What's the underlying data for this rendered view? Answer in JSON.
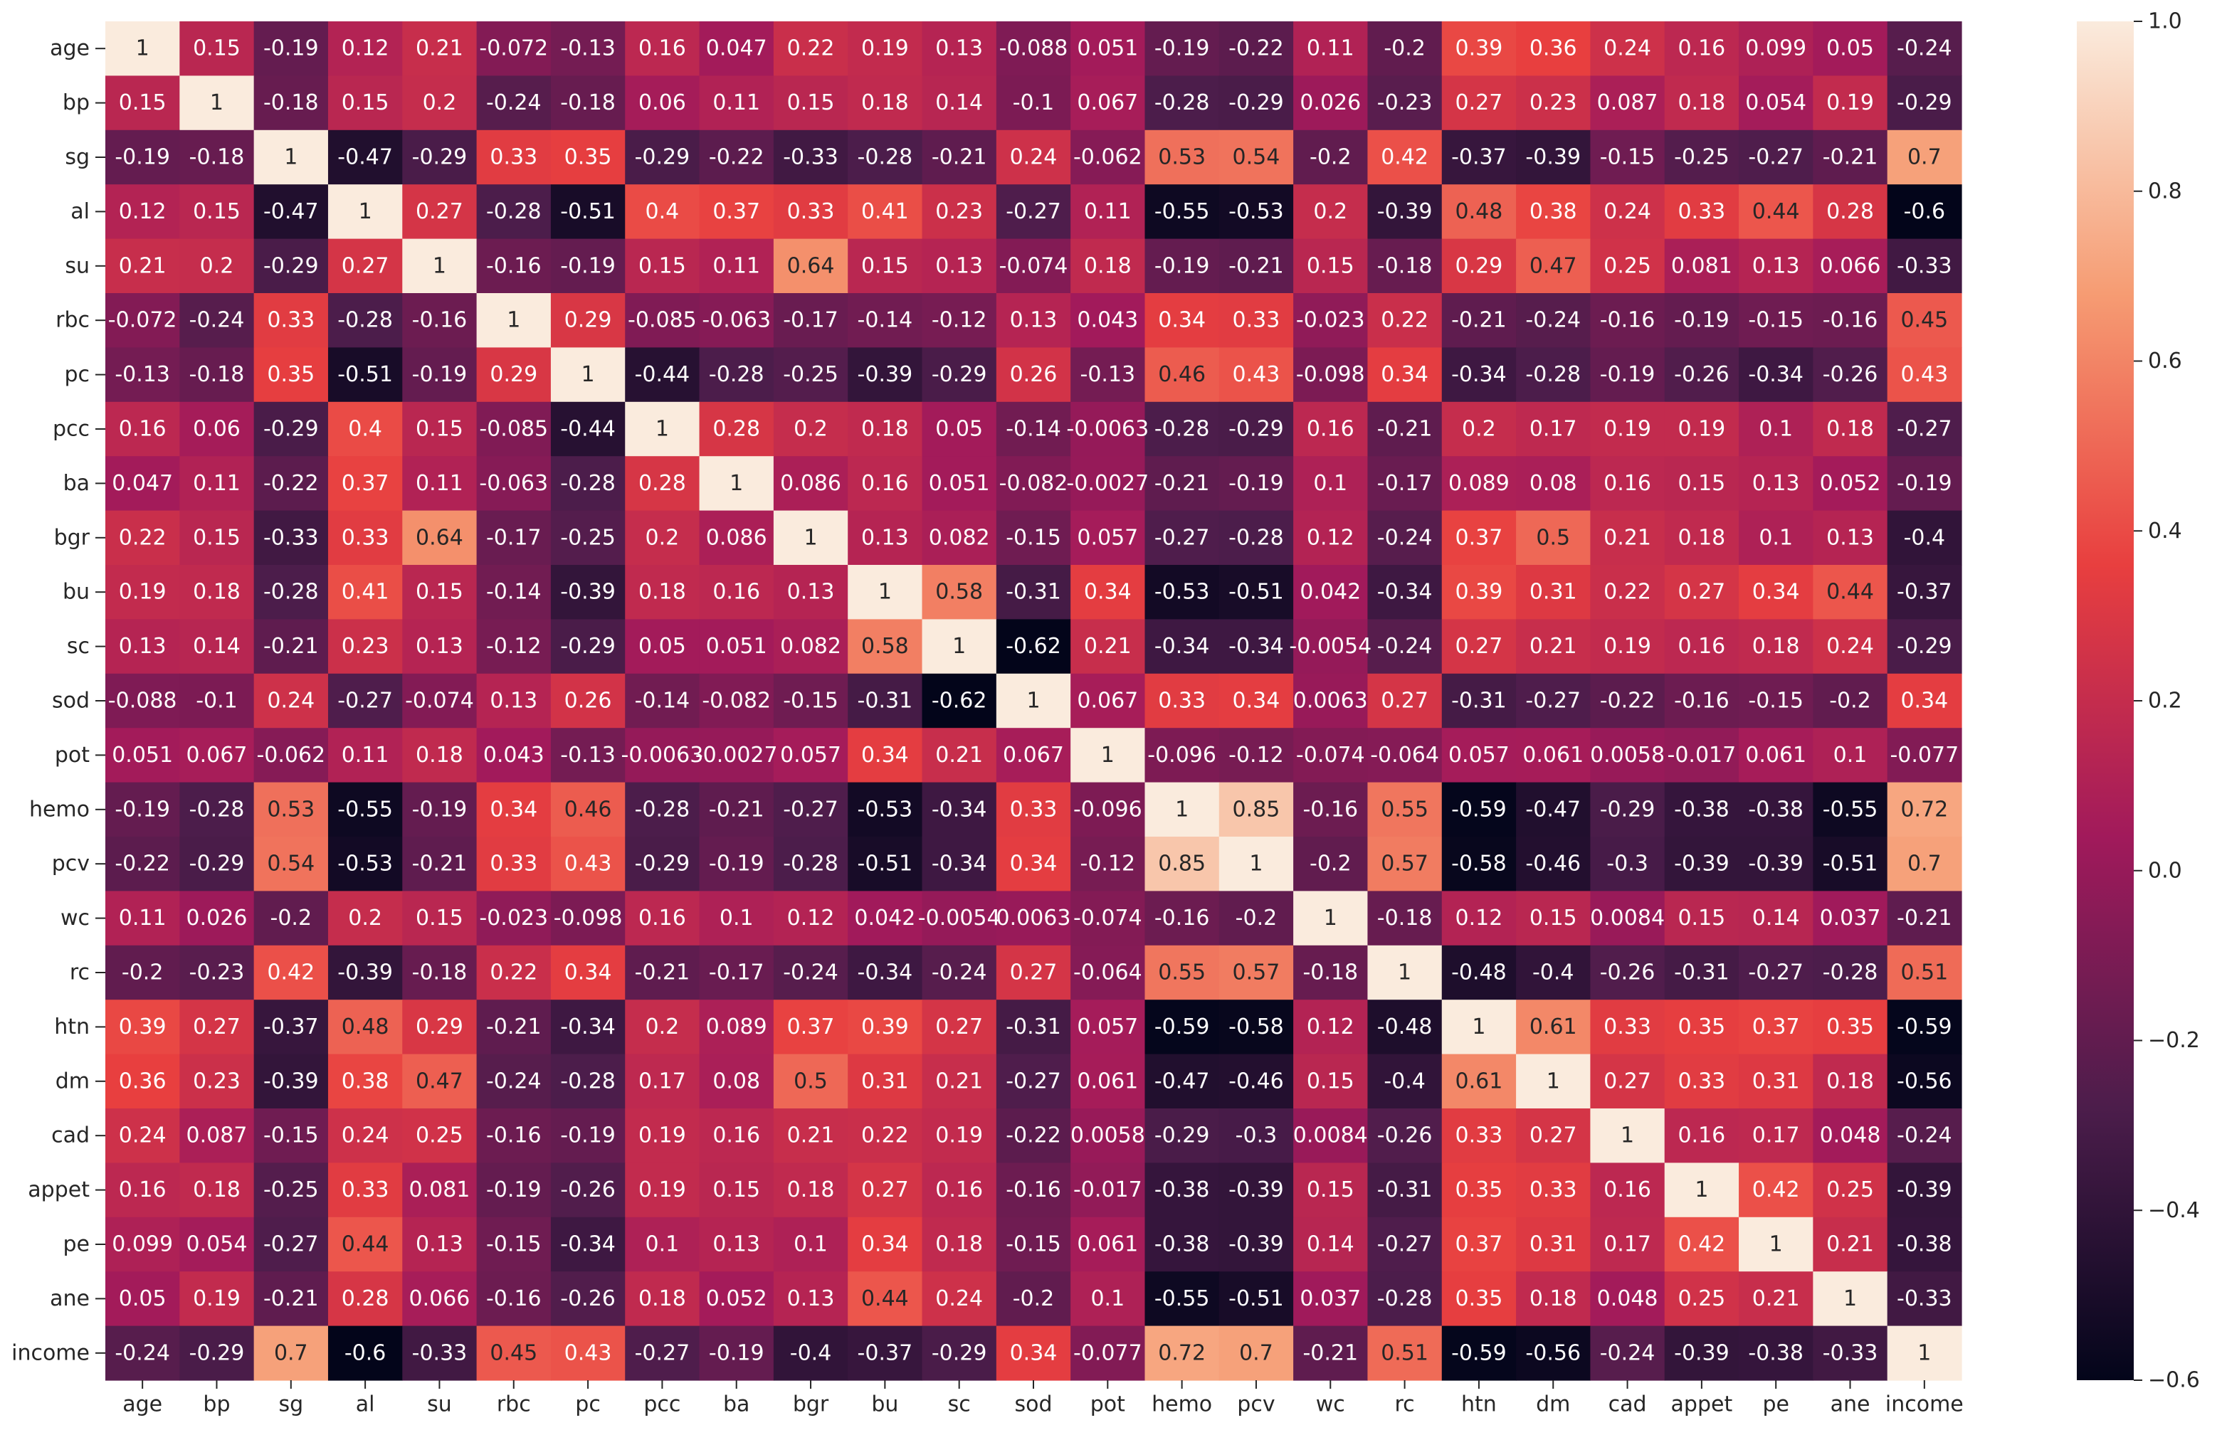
{
  "chart_data": {
    "type": "heatmap",
    "title": "",
    "xlabel": "",
    "ylabel": "",
    "labels": [
      "age",
      "bp",
      "sg",
      "al",
      "su",
      "rbc",
      "pc",
      "pcc",
      "ba",
      "bgr",
      "bu",
      "sc",
      "sod",
      "pot",
      "hemo",
      "pcv",
      "wc",
      "rc",
      "htn",
      "dm",
      "cad",
      "appet",
      "pe",
      "ane",
      "income"
    ],
    "values": [
      [
        "1",
        "0.15",
        "-0.19",
        "0.12",
        "0.21",
        "-0.072",
        "-0.13",
        "0.16",
        "0.047",
        "0.22",
        "0.19",
        "0.13",
        "-0.088",
        "0.051",
        "-0.19",
        "-0.22",
        "0.11",
        "-0.2",
        "0.39",
        "0.36",
        "0.24",
        "0.16",
        "0.099",
        "0.05",
        "-0.24"
      ],
      [
        "0.15",
        "1",
        "-0.18",
        "0.15",
        "0.2",
        "-0.24",
        "-0.18",
        "0.06",
        "0.11",
        "0.15",
        "0.18",
        "0.14",
        "-0.1",
        "0.067",
        "-0.28",
        "-0.29",
        "0.026",
        "-0.23",
        "0.27",
        "0.23",
        "0.087",
        "0.18",
        "0.054",
        "0.19",
        "-0.29"
      ],
      [
        "-0.19",
        "-0.18",
        "1",
        "-0.47",
        "-0.29",
        "0.33",
        "0.35",
        "-0.29",
        "-0.22",
        "-0.33",
        "-0.28",
        "-0.21",
        "0.24",
        "-0.062",
        "0.53",
        "0.54",
        "-0.2",
        "0.42",
        "-0.37",
        "-0.39",
        "-0.15",
        "-0.25",
        "-0.27",
        "-0.21",
        "0.7"
      ],
      [
        "0.12",
        "0.15",
        "-0.47",
        "1",
        "0.27",
        "-0.28",
        "-0.51",
        "0.4",
        "0.37",
        "0.33",
        "0.41",
        "0.23",
        "-0.27",
        "0.11",
        "-0.55",
        "-0.53",
        "0.2",
        "-0.39",
        "0.48",
        "0.38",
        "0.24",
        "0.33",
        "0.44",
        "0.28",
        "-0.6"
      ],
      [
        "0.21",
        "0.2",
        "-0.29",
        "0.27",
        "1",
        "-0.16",
        "-0.19",
        "0.15",
        "0.11",
        "0.64",
        "0.15",
        "0.13",
        "-0.074",
        "0.18",
        "-0.19",
        "-0.21",
        "0.15",
        "-0.18",
        "0.29",
        "0.47",
        "0.25",
        "0.081",
        "0.13",
        "0.066",
        "-0.33"
      ],
      [
        "-0.072",
        "-0.24",
        "0.33",
        "-0.28",
        "-0.16",
        "1",
        "0.29",
        "-0.085",
        "-0.063",
        "-0.17",
        "-0.14",
        "-0.12",
        "0.13",
        "0.043",
        "0.34",
        "0.33",
        "-0.023",
        "0.22",
        "-0.21",
        "-0.24",
        "-0.16",
        "-0.19",
        "-0.15",
        "-0.16",
        "0.45"
      ],
      [
        "-0.13",
        "-0.18",
        "0.35",
        "-0.51",
        "-0.19",
        "0.29",
        "1",
        "-0.44",
        "-0.28",
        "-0.25",
        "-0.39",
        "-0.29",
        "0.26",
        "-0.13",
        "0.46",
        "0.43",
        "-0.098",
        "0.34",
        "-0.34",
        "-0.28",
        "-0.19",
        "-0.26",
        "-0.34",
        "-0.26",
        "0.43"
      ],
      [
        "0.16",
        "0.06",
        "-0.29",
        "0.4",
        "0.15",
        "-0.085",
        "-0.44",
        "1",
        "0.28",
        "0.2",
        "0.18",
        "0.05",
        "-0.14",
        "-0.0063",
        "-0.28",
        "-0.29",
        "0.16",
        "-0.21",
        "0.2",
        "0.17",
        "0.19",
        "0.19",
        "0.1",
        "0.18",
        "-0.27"
      ],
      [
        "0.047",
        "0.11",
        "-0.22",
        "0.37",
        "0.11",
        "-0.063",
        "-0.28",
        "0.28",
        "1",
        "0.086",
        "0.16",
        "0.051",
        "-0.082",
        "-0.0027",
        "-0.21",
        "-0.19",
        "0.1",
        "-0.17",
        "0.089",
        "0.08",
        "0.16",
        "0.15",
        "0.13",
        "0.052",
        "-0.19"
      ],
      [
        "0.22",
        "0.15",
        "-0.33",
        "0.33",
        "0.64",
        "-0.17",
        "-0.25",
        "0.2",
        "0.086",
        "1",
        "0.13",
        "0.082",
        "-0.15",
        "0.057",
        "-0.27",
        "-0.28",
        "0.12",
        "-0.24",
        "0.37",
        "0.5",
        "0.21",
        "0.18",
        "0.1",
        "0.13",
        "-0.4"
      ],
      [
        "0.19",
        "0.18",
        "-0.28",
        "0.41",
        "0.15",
        "-0.14",
        "-0.39",
        "0.18",
        "0.16",
        "0.13",
        "1",
        "0.58",
        "-0.31",
        "0.34",
        "-0.53",
        "-0.51",
        "0.042",
        "-0.34",
        "0.39",
        "0.31",
        "0.22",
        "0.27",
        "0.34",
        "0.44",
        "-0.37"
      ],
      [
        "0.13",
        "0.14",
        "-0.21",
        "0.23",
        "0.13",
        "-0.12",
        "-0.29",
        "0.05",
        "0.051",
        "0.082",
        "0.58",
        "1",
        "-0.62",
        "0.21",
        "-0.34",
        "-0.34",
        "-0.0054",
        "-0.24",
        "0.27",
        "0.21",
        "0.19",
        "0.16",
        "0.18",
        "0.24",
        "-0.29"
      ],
      [
        "-0.088",
        "-0.1",
        "0.24",
        "-0.27",
        "-0.074",
        "0.13",
        "0.26",
        "-0.14",
        "-0.082",
        "-0.15",
        "-0.31",
        "-0.62",
        "1",
        "0.067",
        "0.33",
        "0.34",
        "0.0063",
        "0.27",
        "-0.31",
        "-0.27",
        "-0.22",
        "-0.16",
        "-0.15",
        "-0.2",
        "0.34"
      ],
      [
        "0.051",
        "0.067",
        "-0.062",
        "0.11",
        "0.18",
        "0.043",
        "-0.13",
        "-0.0063",
        "-0.0027",
        "0.057",
        "0.34",
        "0.21",
        "0.067",
        "1",
        "-0.096",
        "-0.12",
        "-0.074",
        "-0.064",
        "0.057",
        "0.061",
        "0.0058",
        "-0.017",
        "0.061",
        "0.1",
        "-0.077"
      ],
      [
        "-0.19",
        "-0.28",
        "0.53",
        "-0.55",
        "-0.19",
        "0.34",
        "0.46",
        "-0.28",
        "-0.21",
        "-0.27",
        "-0.53",
        "-0.34",
        "0.33",
        "-0.096",
        "1",
        "0.85",
        "-0.16",
        "0.55",
        "-0.59",
        "-0.47",
        "-0.29",
        "-0.38",
        "-0.38",
        "-0.55",
        "0.72"
      ],
      [
        "-0.22",
        "-0.29",
        "0.54",
        "-0.53",
        "-0.21",
        "0.33",
        "0.43",
        "-0.29",
        "-0.19",
        "-0.28",
        "-0.51",
        "-0.34",
        "0.34",
        "-0.12",
        "0.85",
        "1",
        "-0.2",
        "0.57",
        "-0.58",
        "-0.46",
        "-0.3",
        "-0.39",
        "-0.39",
        "-0.51",
        "0.7"
      ],
      [
        "0.11",
        "0.026",
        "-0.2",
        "0.2",
        "0.15",
        "-0.023",
        "-0.098",
        "0.16",
        "0.1",
        "0.12",
        "0.042",
        "-0.0054",
        "0.0063",
        "-0.074",
        "-0.16",
        "-0.2",
        "1",
        "-0.18",
        "0.12",
        "0.15",
        "0.0084",
        "0.15",
        "0.14",
        "0.037",
        "-0.21"
      ],
      [
        "-0.2",
        "-0.23",
        "0.42",
        "-0.39",
        "-0.18",
        "0.22",
        "0.34",
        "-0.21",
        "-0.17",
        "-0.24",
        "-0.34",
        "-0.24",
        "0.27",
        "-0.064",
        "0.55",
        "0.57",
        "-0.18",
        "1",
        "-0.48",
        "-0.4",
        "-0.26",
        "-0.31",
        "-0.27",
        "-0.28",
        "0.51"
      ],
      [
        "0.39",
        "0.27",
        "-0.37",
        "0.48",
        "0.29",
        "-0.21",
        "-0.34",
        "0.2",
        "0.089",
        "0.37",
        "0.39",
        "0.27",
        "-0.31",
        "0.057",
        "-0.59",
        "-0.58",
        "0.12",
        "-0.48",
        "1",
        "0.61",
        "0.33",
        "0.35",
        "0.37",
        "0.35",
        "-0.59"
      ],
      [
        "0.36",
        "0.23",
        "-0.39",
        "0.38",
        "0.47",
        "-0.24",
        "-0.28",
        "0.17",
        "0.08",
        "0.5",
        "0.31",
        "0.21",
        "-0.27",
        "0.061",
        "-0.47",
        "-0.46",
        "0.15",
        "-0.4",
        "0.61",
        "1",
        "0.27",
        "0.33",
        "0.31",
        "0.18",
        "-0.56"
      ],
      [
        "0.24",
        "0.087",
        "-0.15",
        "0.24",
        "0.25",
        "-0.16",
        "-0.19",
        "0.19",
        "0.16",
        "0.21",
        "0.22",
        "0.19",
        "-0.22",
        "0.0058",
        "-0.29",
        "-0.3",
        "0.0084",
        "-0.26",
        "0.33",
        "0.27",
        "1",
        "0.16",
        "0.17",
        "0.048",
        "-0.24"
      ],
      [
        "0.16",
        "0.18",
        "-0.25",
        "0.33",
        "0.081",
        "-0.19",
        "-0.26",
        "0.19",
        "0.15",
        "0.18",
        "0.27",
        "0.16",
        "-0.16",
        "-0.017",
        "-0.38",
        "-0.39",
        "0.15",
        "-0.31",
        "0.35",
        "0.33",
        "0.16",
        "1",
        "0.42",
        "0.25",
        "-0.39"
      ],
      [
        "0.099",
        "0.054",
        "-0.27",
        "0.44",
        "0.13",
        "-0.15",
        "-0.34",
        "0.1",
        "0.13",
        "0.1",
        "0.34",
        "0.18",
        "-0.15",
        "0.061",
        "-0.38",
        "-0.39",
        "0.14",
        "-0.27",
        "0.37",
        "0.31",
        "0.17",
        "0.42",
        "1",
        "0.21",
        "-0.38"
      ],
      [
        "0.05",
        "0.19",
        "-0.21",
        "0.28",
        "0.066",
        "-0.16",
        "-0.26",
        "0.18",
        "0.052",
        "0.13",
        "0.44",
        "0.24",
        "-0.2",
        "0.1",
        "-0.55",
        "-0.51",
        "0.037",
        "-0.28",
        "0.35",
        "0.18",
        "0.048",
        "0.25",
        "0.21",
        "1",
        "-0.33"
      ],
      [
        "-0.24",
        "-0.29",
        "0.7",
        "-0.6",
        "-0.33",
        "0.45",
        "0.43",
        "-0.27",
        "-0.19",
        "-0.4",
        "-0.37",
        "-0.29",
        "0.34",
        "-0.077",
        "0.72",
        "0.7",
        "-0.21",
        "0.51",
        "-0.59",
        "-0.56",
        "-0.24",
        "-0.39",
        "-0.38",
        "-0.33",
        "1"
      ]
    ],
    "colorbar": {
      "min": -0.6,
      "max": 1.0,
      "ticks": [
        "1.0",
        "0.8",
        "0.6",
        "0.4",
        "0.2",
        "0.0",
        "−0.2",
        "−0.4",
        "−0.6"
      ],
      "colormap": "rocket",
      "colors": [
        "#03051a",
        "#4c1d4b",
        "#a11a5b",
        "#e83f3f",
        "#f69c73",
        "#faebdd"
      ]
    },
    "grid": false,
    "legend": "colorbar-right"
  }
}
